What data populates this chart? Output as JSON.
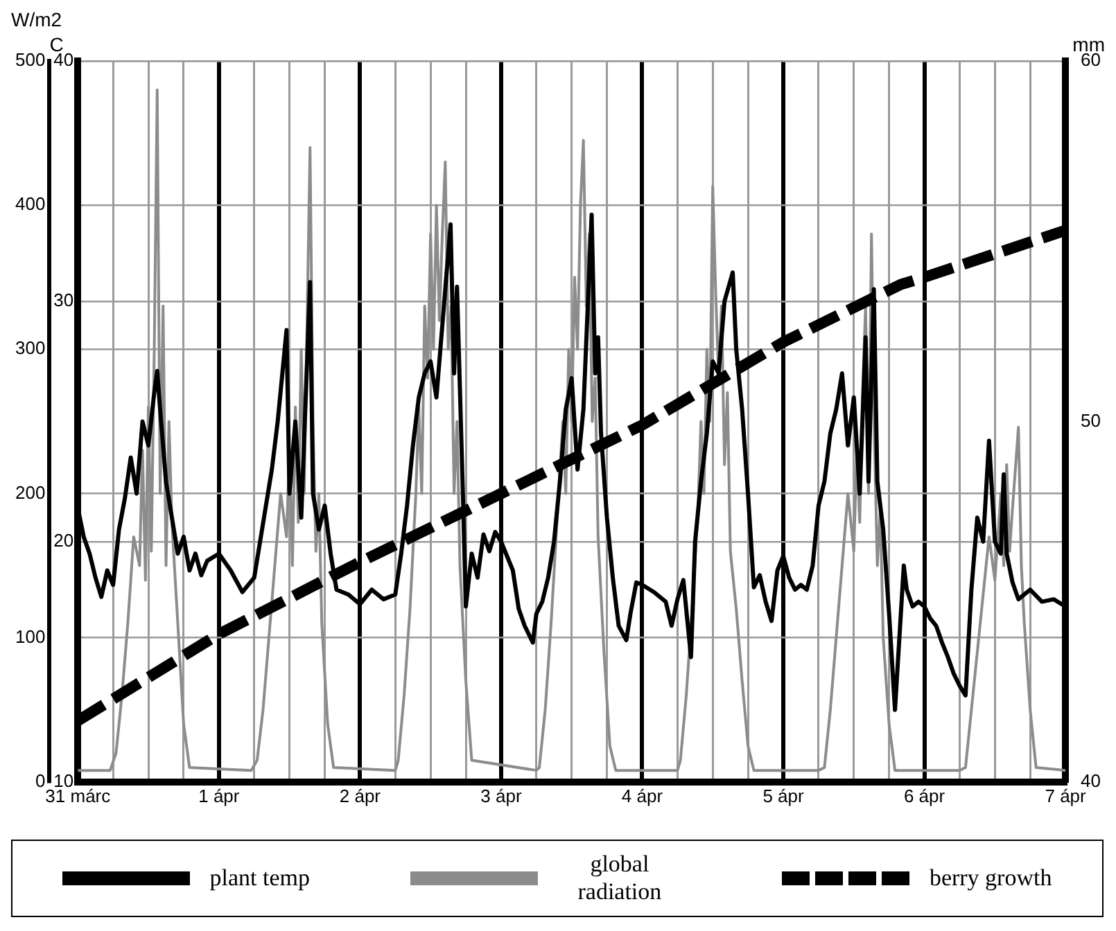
{
  "chart_data": {
    "type": "line",
    "ylabel": "W/m2",
    "y2label": "C",
    "y3label": "mm",
    "xlim": [
      "--03-31",
      "--04-07"
    ],
    "xticks": [
      {
        "value": "--03-31",
        "label": "31 márc"
      },
      {
        "value": "--03-31T06:00",
        "label": null
      },
      {
        "value": "--03-31T12:00",
        "label": null
      },
      {
        "value": "--03-31T18:00",
        "label": null
      },
      {
        "value": "--04-01",
        "label": "1 ápr"
      },
      {
        "value": "--04-01T06:00",
        "label": null
      },
      {
        "value": "--04-01T12:00",
        "label": null
      },
      {
        "value": "--04-01T18:00",
        "label": null
      },
      {
        "value": "--04-02",
        "label": "2 ápr"
      },
      {
        "value": "--04-02T06:00",
        "label": null
      },
      {
        "value": "--04-02T12:00",
        "label": null
      },
      {
        "value": "--04-02T18:00",
        "label": null
      },
      {
        "value": "--04-03",
        "label": "3 ápr"
      },
      {
        "value": "--04-03T06:00",
        "label": null
      },
      {
        "value": "--04-03T12:00",
        "label": null
      },
      {
        "value": "--04-03T18:00",
        "label": null
      },
      {
        "value": "--04-04",
        "label": "4 ápr"
      },
      {
        "value": "--04-04T06:00",
        "label": null
      },
      {
        "value": "--04-04T12:00",
        "label": null
      },
      {
        "value": "--04-04T18:00",
        "label": null
      },
      {
        "value": "--04-05",
        "label": "5 ápr"
      },
      {
        "value": "--04-05T06:00",
        "label": null
      },
      {
        "value": "--04-05T12:00",
        "label": null
      },
      {
        "value": "--04-05T18:00",
        "label": null
      },
      {
        "value": "--04-06",
        "label": "6 ápr"
      },
      {
        "value": "--04-06T06:00",
        "label": null
      },
      {
        "value": "--04-06T12:00",
        "label": null
      },
      {
        "value": "--04-06T18:00",
        "label": null
      },
      {
        "value": "--04-07",
        "label": "7 ápr"
      }
    ],
    "ylim": [
      0,
      500
    ],
    "yticks": [
      0,
      100,
      200,
      300,
      400,
      500
    ],
    "y2lim": [
      10,
      40
    ],
    "y2ticks": [
      10,
      20,
      30,
      40
    ],
    "y3lim": [
      40,
      60
    ],
    "y3ticks": [
      40,
      50,
      60
    ],
    "grid": true,
    "legend": "bottom",
    "marker": "none",
    "series": [
      {
        "name": "plant temp",
        "color": "#000000",
        "axis": "y2",
        "line_style": "solid",
        "x": [
          "--03-31T00:00",
          "--03-31T01:00",
          "--03-31T02:00",
          "--03-31T03:00",
          "--03-31T04:00",
          "--03-31T05:00",
          "--03-31T06:00",
          "--03-31T07:00",
          "--03-31T08:00",
          "--03-31T09:00",
          "--03-31T10:00",
          "--03-31T11:00",
          "--03-31T12:00",
          "--03-31T13:00",
          "--03-31T13:30",
          "--03-31T14:00",
          "--03-31T15:00",
          "--03-31T16:00",
          "--03-31T17:00",
          "--03-31T18:00",
          "--03-31T19:00",
          "--03-31T20:00",
          "--03-31T21:00",
          "--03-31T22:00",
          "--04-01T00:00",
          "--04-01T02:00",
          "--04-01T04:00",
          "--04-01T06:00",
          "--04-01T07:00",
          "--04-01T08:00",
          "--04-01T09:00",
          "--04-01T10:00",
          "--04-01T11:30",
          "--04-01T12:00",
          "--04-01T13:00",
          "--04-01T14:00",
          "--04-01T15:30",
          "--04-01T16:00",
          "--04-01T17:00",
          "--04-01T18:00",
          "--04-01T19:00",
          "--04-01T20:00",
          "--04-01T22:00",
          "--04-02T00:00",
          "--04-02T02:00",
          "--04-02T04:00",
          "--04-02T06:00",
          "--04-02T07:00",
          "--04-02T08:00",
          "--04-02T09:00",
          "--04-02T10:00",
          "--04-02T11:00",
          "--04-02T12:00",
          "--04-02T13:00",
          "--04-02T14:00",
          "--04-02T15:24",
          "--04-02T16:00",
          "--04-02T16:30",
          "--04-02T17:30",
          "--04-02T18:00",
          "--04-02T19:00",
          "--04-02T20:00",
          "--04-02T21:00",
          "--04-02T22:00",
          "--04-02T23:00",
          "--04-03T00:00",
          "--04-03T02:00",
          "--04-03T03:00",
          "--04-03T04:00",
          "--04-03T05:24",
          "--04-03T06:00",
          "--04-03T07:00",
          "--04-03T08:00",
          "--04-03T09:00",
          "--04-03T10:00",
          "--04-03T11:00",
          "--04-03T12:00",
          "--04-03T13:00",
          "--04-03T14:00",
          "--04-03T15:24",
          "--04-03T16:00",
          "--04-03T16:30",
          "--04-03T17:00",
          "--04-03T18:00",
          "--04-03T19:00",
          "--04-03T20:00",
          "--04-03T21:18",
          "--04-03T22:00",
          "--04-03T23:00",
          "--04-04T00:00",
          "--04-04T02:00",
          "--04-04T04:00",
          "--04-04T05:00",
          "--04-04T06:00",
          "--04-04T07:00",
          "--04-04T08:18",
          "--04-04T09:00",
          "--04-04T10:00",
          "--04-04T11:00",
          "--04-04T12:00",
          "--04-04T13:00",
          "--04-04T14:00",
          "--04-04T15:24",
          "--04-04T16:00",
          "--04-04T17:00",
          "--04-04T18:00",
          "--04-04T19:00",
          "--04-04T20:00",
          "--04-04T21:00",
          "--04-04T22:00",
          "--04-04T23:00",
          "--04-05T00:00",
          "--04-05T01:00",
          "--04-05T02:00",
          "--04-05T03:00",
          "--04-05T04:00",
          "--04-05T05:00",
          "--04-05T06:00",
          "--04-05T07:00",
          "--04-05T08:00",
          "--04-05T09:00",
          "--04-05T10:00",
          "--04-05T11:00",
          "--04-05T12:00",
          "--04-05T13:00",
          "--04-05T14:00",
          "--04-05T14:30",
          "--04-05T15:24",
          "--04-05T16:00",
          "--04-05T17:00",
          "--04-05T18:00",
          "--04-05T19:00",
          "--04-05T20:00",
          "--04-05T20:30",
          "--04-05T21:00",
          "--04-05T22:00",
          "--04-05T23:00",
          "--04-06T00:00",
          "--04-06T01:00",
          "--04-06T02:00",
          "--04-06T03:00",
          "--04-06T04:00",
          "--04-06T05:00",
          "--04-06T06:00",
          "--04-06T07:00",
          "--04-06T08:00",
          "--04-06T09:00",
          "--04-06T10:00",
          "--04-06T11:00",
          "--04-06T12:00",
          "--04-06T13:00",
          "--04-06T13:30",
          "--04-06T14:00",
          "--04-06T15:00",
          "--04-06T16:00",
          "--04-06T17:00",
          "--04-06T18:00",
          "--04-06T20:00",
          "--04-06T22:00",
          "--04-07T00:00"
        ],
        "values": [
          21.4,
          20.2,
          19.5,
          18.5,
          17.7,
          18.8,
          18.2,
          20.5,
          21.8,
          23.5,
          22,
          25,
          24,
          26.2,
          27.1,
          25.5,
          22.5,
          21,
          19.5,
          20.2,
          18.8,
          19.5,
          18.6,
          19.2,
          19.5,
          18.8,
          17.9,
          18.5,
          20,
          21.5,
          23,
          25,
          28.8,
          22,
          25,
          21,
          30.8,
          22,
          20.5,
          21.5,
          19.5,
          18,
          17.8,
          17.4,
          18,
          17.6,
          17.8,
          19.5,
          21.5,
          24,
          26,
          27,
          27.5,
          26,
          29,
          33.2,
          27,
          30.6,
          22,
          17.3,
          19.5,
          18.5,
          20.3,
          19.6,
          20.4,
          20,
          18.8,
          17.2,
          16.5,
          15.8,
          17,
          17.5,
          18.5,
          20,
          22.5,
          25.5,
          26.8,
          23,
          25.5,
          33.6,
          27,
          28.5,
          24.5,
          21,
          18.5,
          16.5,
          15.9,
          17,
          18.3,
          18.2,
          17.9,
          17.5,
          16.5,
          17.6,
          18.4,
          15.2,
          20,
          22.5,
          24.5,
          27.5,
          27,
          30,
          31.2,
          28,
          25.5,
          22,
          18.1,
          18.6,
          17.5,
          16.7,
          18.8,
          19.4,
          18.5,
          18,
          18.2,
          18,
          19,
          21.5,
          22.5,
          24.5,
          25.5,
          27,
          24,
          26,
          22,
          28.5,
          22.5,
          30.5,
          22.5,
          20.5,
          17,
          13,
          17,
          19,
          18,
          17.3,
          17.5,
          17.3,
          16.8,
          16.5,
          15.8,
          15.2,
          14.5,
          14,
          13.6,
          18,
          21,
          20,
          24.2,
          20,
          19.5,
          22.8,
          19.5,
          18.3,
          17.6,
          17.8,
          18,
          17.5,
          17.6,
          17.3
        ]
      },
      {
        "name": "global radiation",
        "color": "#8c8c8c",
        "line_style": "solid",
        "x": [
          "--03-31T00:00",
          "--03-31T05:30",
          "--03-31T06:30",
          "--03-31T07:30",
          "--03-31T08:30",
          "--03-31T09:30",
          "--03-31T10:30",
          "--03-31T11:00",
          "--03-31T11:30",
          "--03-31T12:00",
          "--03-31T12:30",
          "--03-31T13:00",
          "--03-31T13:30",
          "--03-31T14:00",
          "--03-31T14:30",
          "--03-31T15:00",
          "--03-31T15:30",
          "--03-31T16:00",
          "--03-31T17:00",
          "--03-31T18:00",
          "--03-31T19:00",
          "--04-01T05:30",
          "--04-01T06:30",
          "--04-01T07:30",
          "--04-01T08:30",
          "--04-01T09:30",
          "--04-01T10:30",
          "--04-01T11:30",
          "--04-01T12:00",
          "--04-01T12:30",
          "--04-01T13:00",
          "--04-01T13:30",
          "--04-01T14:00",
          "--04-01T14:30",
          "--04-01T15:30",
          "--04-01T16:00",
          "--04-01T16:30",
          "--04-01T17:00",
          "--04-01T17:30",
          "--04-01T18:30",
          "--04-01T19:30",
          "--04-02T06:00",
          "--04-02T06:30",
          "--04-02T07:30",
          "--04-02T08:30",
          "--04-02T09:30",
          "--04-02T10:00",
          "--04-02T10:30",
          "--04-02T11:00",
          "--04-02T11:30",
          "--04-02T12:00",
          "--04-02T12:30",
          "--04-02T13:00",
          "--04-02T13:30",
          "--04-02T14:00",
          "--04-02T14:30",
          "--04-02T15:00",
          "--04-02T15:30",
          "--04-02T16:00",
          "--04-02T16:30",
          "--04-02T17:00",
          "--04-02T18:00",
          "--04-02T19:00",
          "--04-03T06:00",
          "--04-03T06:30",
          "--04-03T07:30",
          "--04-03T08:30",
          "--04-03T09:30",
          "--04-03T10:30",
          "--04-03T11:00",
          "--04-03T11:30",
          "--04-03T12:00",
          "--04-03T12:30",
          "--04-03T13:00",
          "--04-03T13:30",
          "--04-03T14:00",
          "--04-03T14:30",
          "--04-03T15:00",
          "--04-03T15:30",
          "--04-03T16:00",
          "--04-03T16:30",
          "--04-03T17:30",
          "--04-03T18:30",
          "--04-03T19:30",
          "--04-04T06:00",
          "--04-04T06:30",
          "--04-04T07:30",
          "--04-04T08:30",
          "--04-04T09:30",
          "--04-04T10:00",
          "--04-04T10:30",
          "--04-04T11:00",
          "--04-04T11:30",
          "--04-04T12:00",
          "--04-04T12:30",
          "--04-04T13:00",
          "--04-04T13:30",
          "--04-04T14:00",
          "--04-04T14:30",
          "--04-04T15:00",
          "--04-04T16:00",
          "--04-04T17:00",
          "--04-04T18:00",
          "--04-04T19:00",
          "--04-05T06:00",
          "--04-05T07:00",
          "--04-05T08:00",
          "--04-05T09:00",
          "--04-05T10:00",
          "--04-05T11:00",
          "--04-05T12:00",
          "--04-05T12:30",
          "--04-05T13:00",
          "--04-05T13:30",
          "--04-05T14:00",
          "--04-05T14:30",
          "--04-05T15:00",
          "--04-05T15:30",
          "--04-05T16:00",
          "--04-05T16:30",
          "--04-05T17:00",
          "--04-05T18:00",
          "--04-05T19:00",
          "--04-06T06:00",
          "--04-06T07:00",
          "--04-06T08:00",
          "--04-06T09:00",
          "--04-06T10:00",
          "--04-06T11:00",
          "--04-06T12:00",
          "--04-06T13:00",
          "--04-06T13:30",
          "--04-06T14:00",
          "--04-06T14:30",
          "--04-06T15:00",
          "--04-06T16:00",
          "--04-06T16:30",
          "--04-06T17:00",
          "--04-06T18:00",
          "--04-06T19:00",
          "--04-07T00:00"
        ],
        "values": [
          8,
          8,
          20,
          60,
          110,
          170,
          150,
          230,
          140,
          260,
          160,
          300,
          480,
          200,
          330,
          150,
          250,
          180,
          110,
          40,
          10,
          8,
          15,
          50,
          100,
          150,
          200,
          170,
          230,
          150,
          260,
          180,
          300,
          200,
          440,
          250,
          160,
          200,
          110,
          40,
          10,
          8,
          15,
          60,
          120,
          200,
          260,
          200,
          330,
          280,
          380,
          300,
          400,
          320,
          380,
          430,
          300,
          330,
          200,
          250,
          150,
          70,
          15,
          8,
          10,
          50,
          110,
          180,
          250,
          200,
          300,
          250,
          350,
          300,
          400,
          445,
          330,
          380,
          250,
          280,
          170,
          90,
          25,
          8,
          8,
          15,
          60,
          120,
          190,
          250,
          200,
          300,
          250,
          413,
          340,
          280,
          330,
          220,
          270,
          160,
          120,
          70,
          25,
          8,
          8,
          10,
          50,
          100,
          150,
          200,
          160,
          230,
          180,
          270,
          330,
          200,
          380,
          240,
          150,
          190,
          100,
          40,
          8,
          8,
          10,
          50,
          90,
          130,
          170,
          140,
          200,
          150,
          220,
          160,
          190,
          246,
          150,
          110,
          50,
          10,
          8
        ]
      },
      {
        "name": "berry growth",
        "color": "#000000",
        "axis": "y3",
        "line_style": "dashed",
        "x": [
          "--03-31",
          "--04-01",
          "--04-02",
          "--04-03",
          "--04-04",
          "--04-05",
          "--04-05T20:00",
          "--04-06",
          "--04-07"
        ],
        "values": [
          41.7,
          44.1,
          46.1,
          48,
          49.9,
          52.2,
          53.8,
          54,
          55.3
        ]
      }
    ]
  }
}
